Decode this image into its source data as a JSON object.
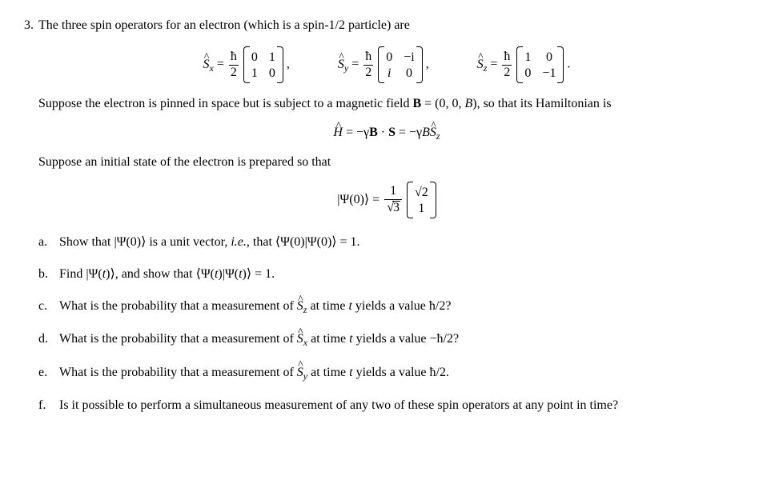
{
  "problem": {
    "number": "3.",
    "intro": "The three spin operators for an electron (which is a spin-1/2 particle) are",
    "spin_eqs": {
      "sx": {
        "op": "S",
        "sub": "x",
        "matrix": [
          [
            "0",
            "1"
          ],
          [
            "1",
            "0"
          ]
        ]
      },
      "sy": {
        "op": "S",
        "sub": "y",
        "matrix": [
          [
            "0",
            "−i"
          ],
          [
            "i",
            "0"
          ]
        ]
      },
      "sz": {
        "op": "S",
        "sub": "z",
        "matrix": [
          [
            "1",
            "0"
          ],
          [
            "0",
            "−1"
          ]
        ]
      },
      "hbar": "ħ",
      "two": "2"
    },
    "suppose1_a": "Suppose the electron is pinned in space but is subject to a magnetic field ",
    "suppose1_B": "B",
    "suppose1_b": " = (0, 0, ",
    "suppose1_Bital": "B",
    "suppose1_c": "), so that its Hamiltonian is",
    "hamiltonian": {
      "lhs_H": "H",
      "eq": " = −γ",
      "B": "B",
      "dot": " · ",
      "S": "S",
      "eq2": " = −γ",
      "Bital": "B",
      "Sz": "S",
      "Sz_sub": "z"
    },
    "suppose2": "Suppose an initial state of the electron is prepared so that",
    "psi0": {
      "lhs": "|Ψ(0)⟩ = ",
      "num": "1",
      "den_sqrt": "3",
      "vec": [
        "√2",
        "1"
      ]
    },
    "parts": {
      "a": {
        "letter": "a.",
        "text_a": "Show that |Ψ(0)⟩ is a unit vector, ",
        "text_ie": "i.e.",
        "text_b": ", that ⟨Ψ(0)|Ψ(0)⟩ = 1."
      },
      "b": {
        "letter": "b.",
        "text_a": "Find |Ψ(",
        "text_t1": "t",
        "text_b": ")⟩, and show that ⟨Ψ(",
        "text_t2": "t",
        "text_c": ")|Ψ(",
        "text_t3": "t",
        "text_d": ")⟩ = 1."
      },
      "c": {
        "letter": "c.",
        "text_a": "What is the probability that a measurement of ",
        "op": "S",
        "op_sub": "z",
        "text_b": " at time ",
        "text_t": "t",
        "text_c": " yields a value ħ/2?"
      },
      "d": {
        "letter": "d.",
        "text_a": "What is the probability that a measurement of ",
        "op": "S",
        "op_sub": "x",
        "text_b": " at time ",
        "text_t": "t",
        "text_c": " yields a value −ħ/2?"
      },
      "e": {
        "letter": "e.",
        "text_a": "What is the probability that a measurement of ",
        "op": "S",
        "op_sub": "y",
        "text_b": " at time ",
        "text_t": "t",
        "text_c": " yields a value ħ/2."
      },
      "f": {
        "letter": "f.",
        "text": "Is it possible to perform a simultaneous measurement of any two of these spin operators at any point in time?"
      }
    }
  },
  "style": {
    "background_color": "#ffffff",
    "text_color": "#000000",
    "font_family": "Times New Roman",
    "body_fontsize_pt": 12
  }
}
